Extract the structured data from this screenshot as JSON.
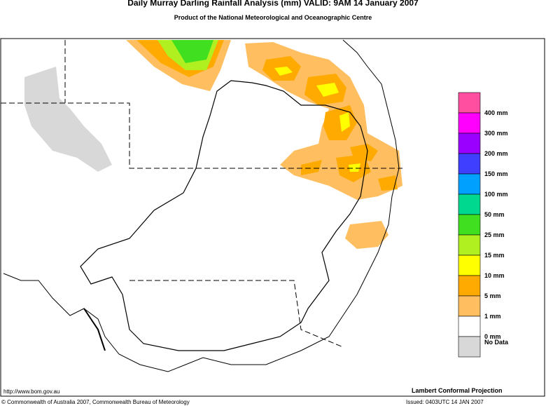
{
  "header": {
    "title": "Daily Murray Darling Rainfall Analysis (mm)  VALID: 9AM 14 January 2007",
    "subtitle": "Product of the National Meteorological and Oceanographic Centre"
  },
  "legend": {
    "items": [
      {
        "label": "400 mm",
        "color": "#ff4fa0"
      },
      {
        "label": "300 mm",
        "color": "#ff00ff"
      },
      {
        "label": "200 mm",
        "color": "#9a00ff"
      },
      {
        "label": "150 mm",
        "color": "#3f3fff"
      },
      {
        "label": "100 mm",
        "color": "#00a0ff"
      },
      {
        "label": "50 mm",
        "color": "#00d890"
      },
      {
        "label": "25 mm",
        "color": "#40e020"
      },
      {
        "label": "15 mm",
        "color": "#b0f020"
      },
      {
        "label": "10 mm",
        "color": "#ffff00"
      },
      {
        "label": "5 mm",
        "color": "#ffaa00"
      },
      {
        "label": "1 mm",
        "color": "#ffbf60"
      },
      {
        "label": "0 mm",
        "color": "#ffffff"
      },
      {
        "label": "No Data",
        "color": "#d8d8d8"
      }
    ]
  },
  "footer": {
    "url": "http://www.bom.gov.au",
    "projection": "Lambert Conformal Projection",
    "copyright": "© Commonwealth of Australia 2007, Commonwealth Bureau of Meteorology",
    "issued": "Issued: 0403UTC 14 JAN 2007"
  }
}
